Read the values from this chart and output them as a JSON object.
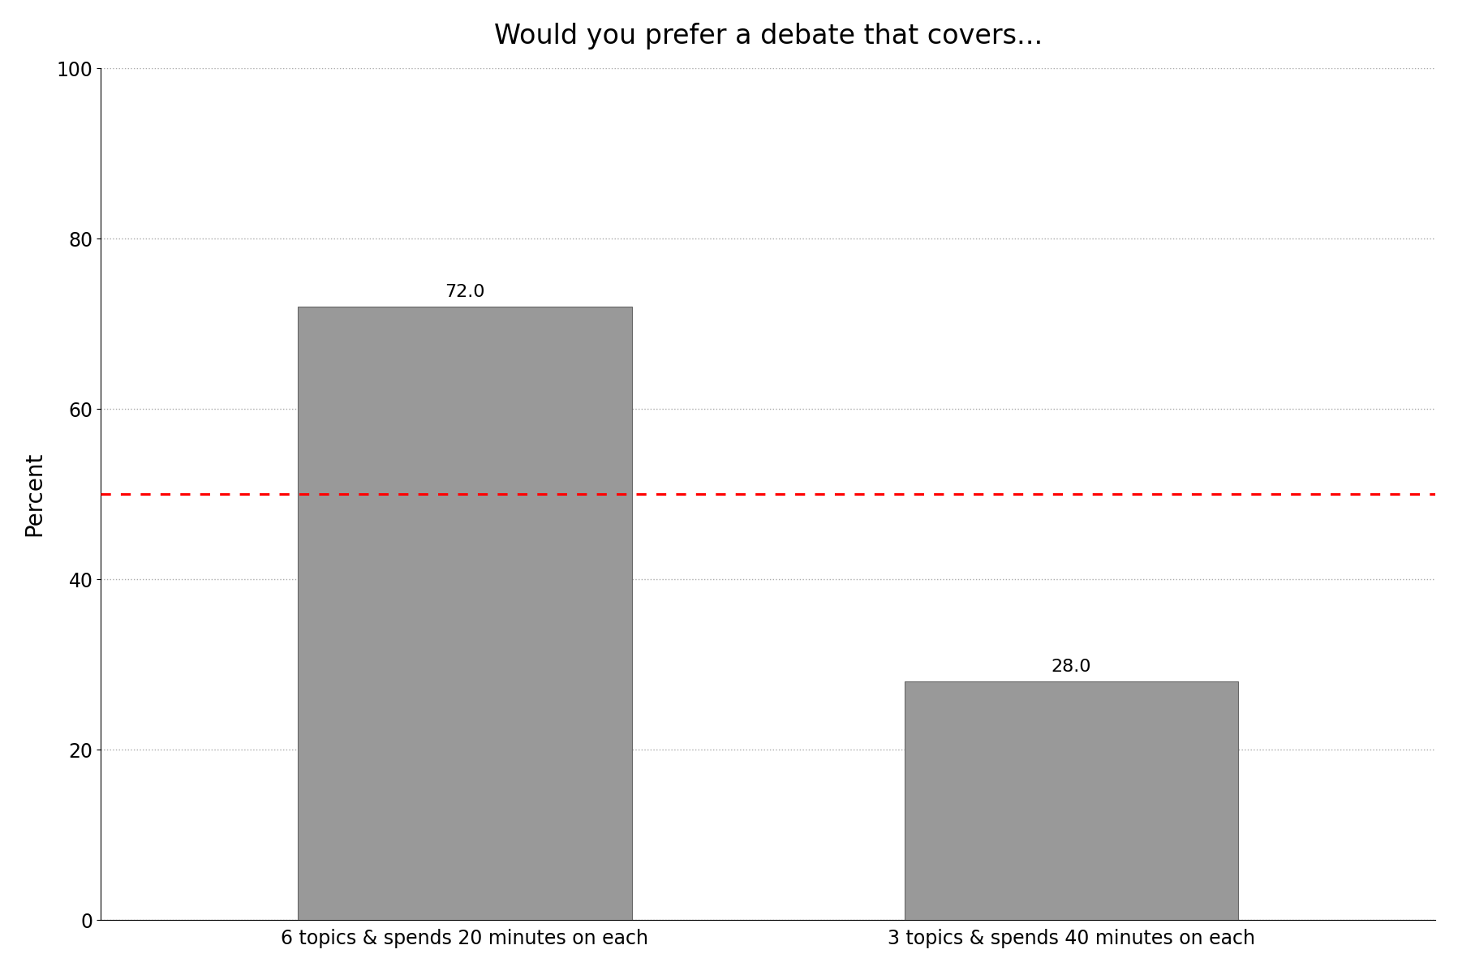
{
  "title": "Would you prefer a debate that covers...",
  "categories": [
    "6 topics & spends 20 minutes on each",
    "3 topics & spends 40 minutes on each"
  ],
  "values": [
    72.0,
    28.0
  ],
  "bar_color": "#999999",
  "bar_edge_color": "#666666",
  "ylabel": "Percent",
  "ylim": [
    0,
    100
  ],
  "yticks": [
    0,
    20,
    40,
    60,
    80,
    100
  ],
  "reference_line_y": 50,
  "reference_line_color": "#ff0000",
  "background_color": "#ffffff",
  "grid_color": "#aaaaaa",
  "title_fontsize": 24,
  "axis_label_fontsize": 20,
  "tick_fontsize": 17,
  "bar_label_fontsize": 16
}
